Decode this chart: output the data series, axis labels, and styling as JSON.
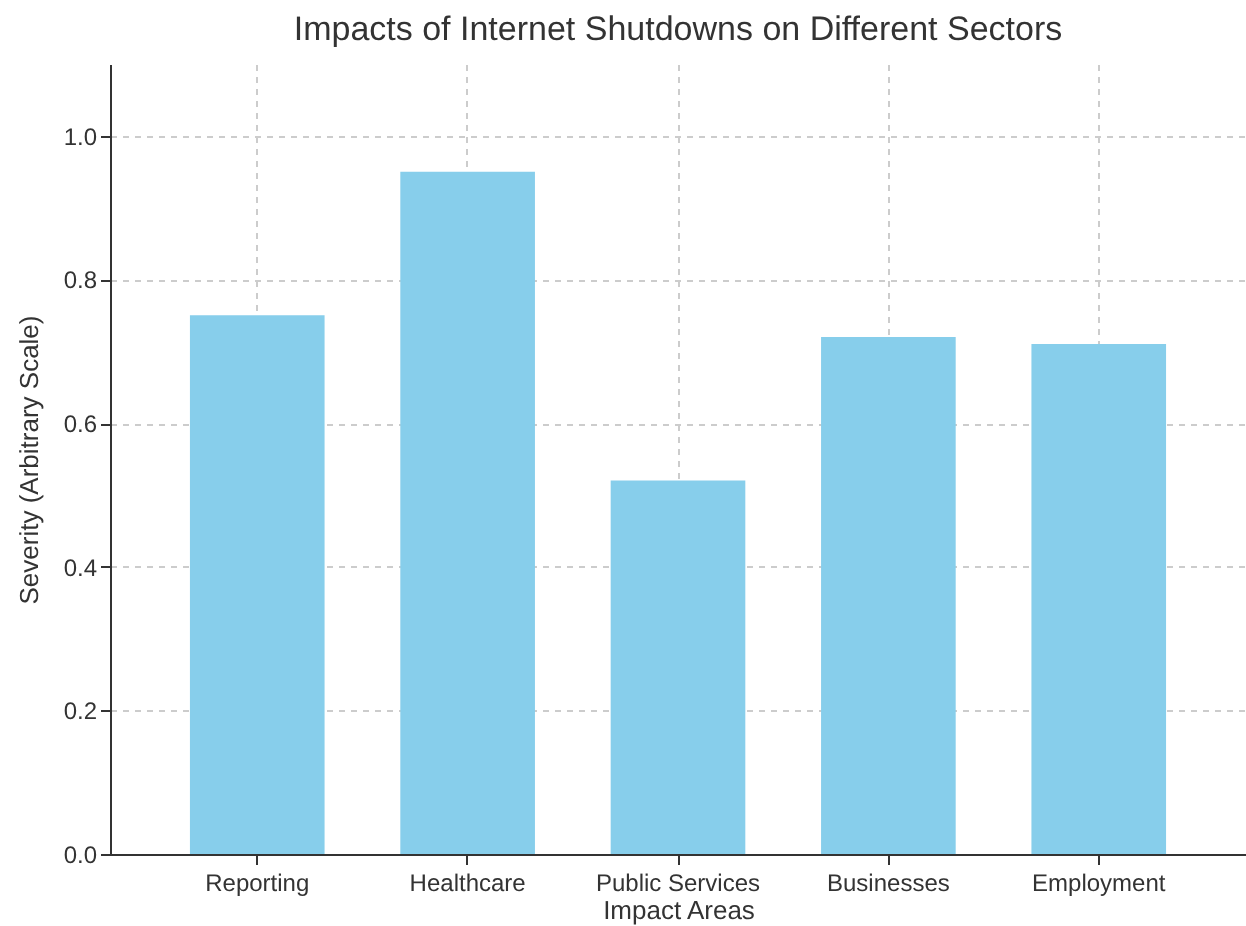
{
  "chart_data": {
    "type": "bar",
    "title": "Impacts of Internet Shutdowns on Different Sectors",
    "xlabel": "Impact Areas",
    "ylabel": "Severity (Arbitrary Scale)",
    "categories": [
      "Reporting",
      "Healthcare",
      "Public Services",
      "Businesses",
      "Employment"
    ],
    "values": [
      0.75,
      0.95,
      0.52,
      0.72,
      0.71
    ],
    "color": "#87ceeb",
    "ylim": [
      0,
      1.1
    ],
    "yticks": [
      {
        "value": 0,
        "label": "0.0"
      },
      {
        "value": 0.2,
        "label": "0.2"
      },
      {
        "value": 0.4,
        "label": "0.4"
      },
      {
        "value": 0.6,
        "label": "0.6"
      },
      {
        "value": 0.8,
        "label": "0.8"
      },
      {
        "value": 1,
        "label": "1.0"
      }
    ],
    "grid": true
  }
}
